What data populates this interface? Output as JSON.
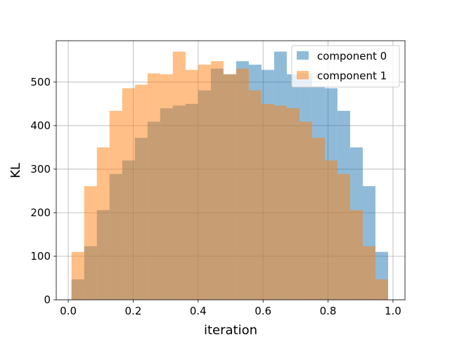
{
  "chart_data": {
    "type": "bar",
    "subtype": "overlapping-histogram",
    "xlabel": "iteration",
    "ylabel": "KL",
    "xlim": [
      -0.037,
      1.037
    ],
    "ylim": [
      0,
      595
    ],
    "grid": true,
    "legend_position": "top-right",
    "xticks": [
      0.0,
      0.2,
      0.4,
      0.6,
      0.8,
      1.0
    ],
    "xtick_labels": [
      "0.0",
      "0.2",
      "0.4",
      "0.6",
      "0.8",
      "1.0"
    ],
    "yticks": [
      0,
      100,
      200,
      300,
      400,
      500
    ],
    "ytick_labels": [
      "0",
      "100",
      "200",
      "300",
      "400",
      "500"
    ],
    "bin_edges": [
      0.01,
      0.049,
      0.088,
      0.127,
      0.166,
      0.205,
      0.244,
      0.283,
      0.322,
      0.361,
      0.4,
      0.439,
      0.478,
      0.517,
      0.556,
      0.595,
      0.634,
      0.673,
      0.712,
      0.751,
      0.79,
      0.829,
      0.868,
      0.907,
      0.946,
      0.985
    ],
    "series": [
      {
        "name": "component 0",
        "color": "#1f77b4",
        "opacity": 0.5,
        "values": [
          47,
          123,
          206,
          289,
          320,
          372,
          409,
          440,
          446,
          450,
          481,
          531,
          518,
          548,
          540,
          528,
          570,
          518,
          520,
          490,
          486,
          434,
          350,
          261,
          110
        ]
      },
      {
        "name": "component 1",
        "color": "#ff7f0e",
        "opacity": 0.5,
        "values": [
          110,
          261,
          350,
          434,
          486,
          494,
          520,
          518,
          570,
          528,
          540,
          548,
          518,
          531,
          481,
          450,
          446,
          440,
          409,
          372,
          320,
          289,
          206,
          123,
          47
        ]
      }
    ]
  }
}
